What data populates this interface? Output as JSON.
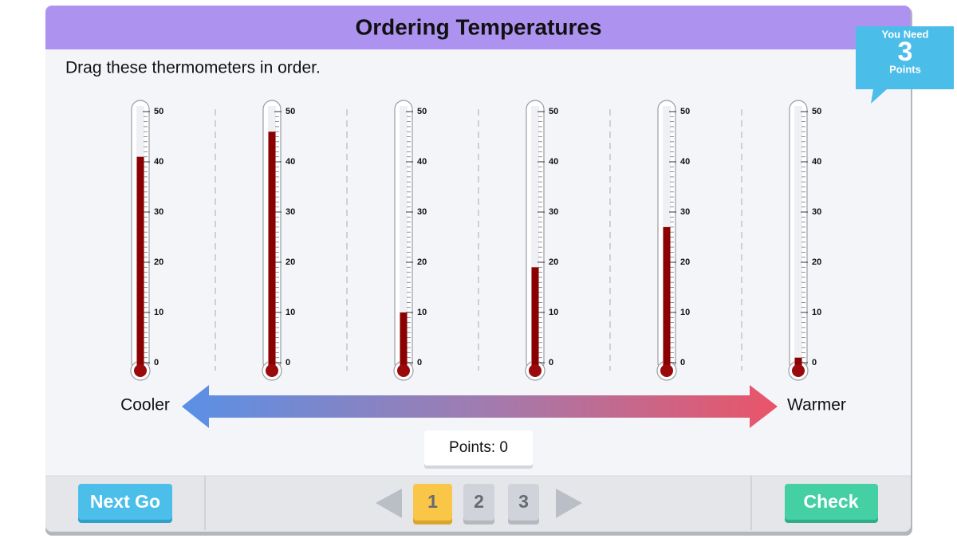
{
  "header": {
    "title": "Ordering Temperatures"
  },
  "instruction": "Drag these thermometers in order.",
  "badge": {
    "top": "You Need",
    "number": "3",
    "bottom": "Points"
  },
  "scale": {
    "ylim": [
      0,
      50
    ],
    "ticks": [
      0,
      10,
      20,
      30,
      40,
      50
    ]
  },
  "thermometers": [
    {
      "value": 41
    },
    {
      "value": 46
    },
    {
      "value": 10
    },
    {
      "value": 19
    },
    {
      "value": 27
    },
    {
      "value": 1
    }
  ],
  "arrow": {
    "left": "Cooler",
    "right": "Warmer"
  },
  "points": "Points: 0",
  "footer": {
    "next": "Next Go",
    "pages": [
      "1",
      "2",
      "3"
    ],
    "check": "Check"
  }
}
